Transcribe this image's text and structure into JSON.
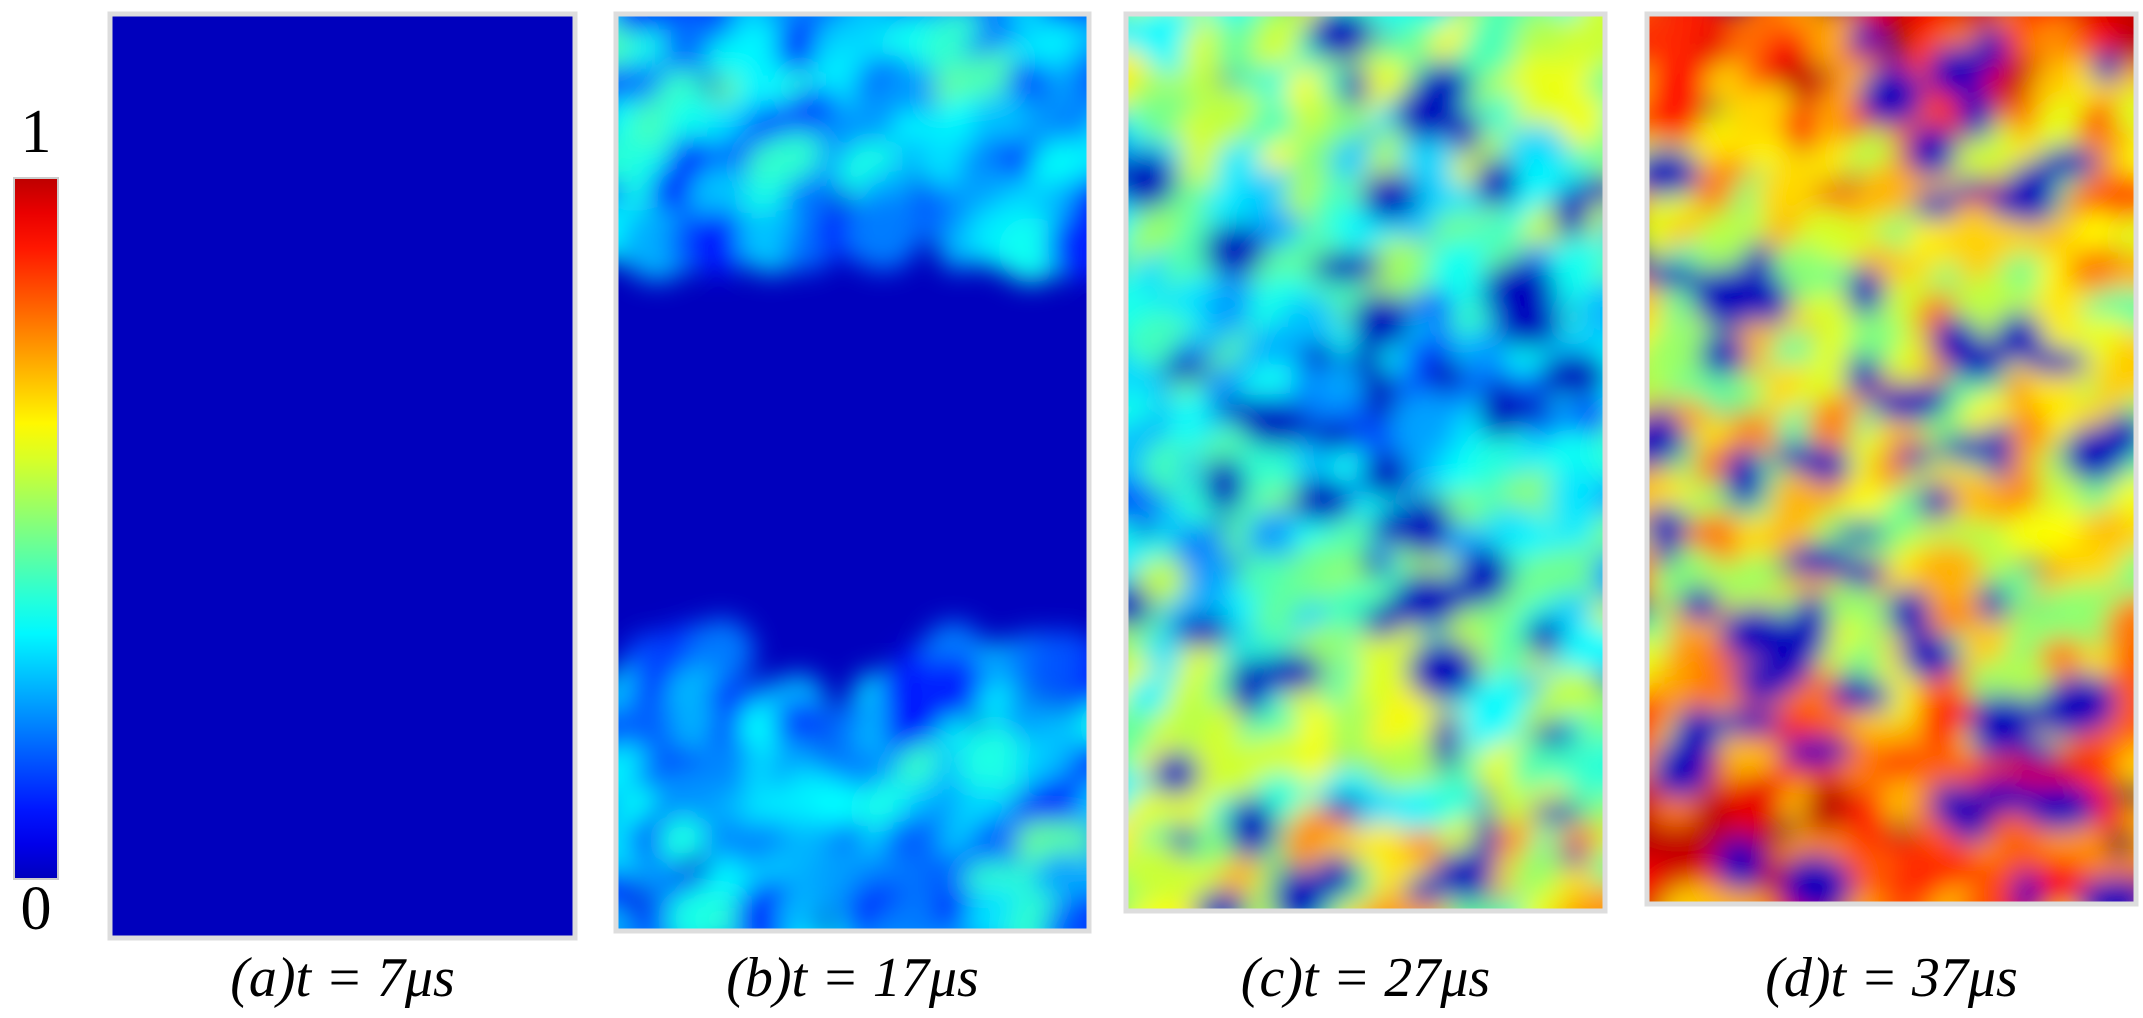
{
  "colorbar": {
    "ticks": [
      0,
      1
    ]
  },
  "panels": [
    {
      "caption": "(a)t = 7μs"
    },
    {
      "caption": "(b)t = 17μs"
    },
    {
      "caption": "(c)t = 27μs"
    },
    {
      "caption": "(d)t = 37μs"
    }
  ]
}
